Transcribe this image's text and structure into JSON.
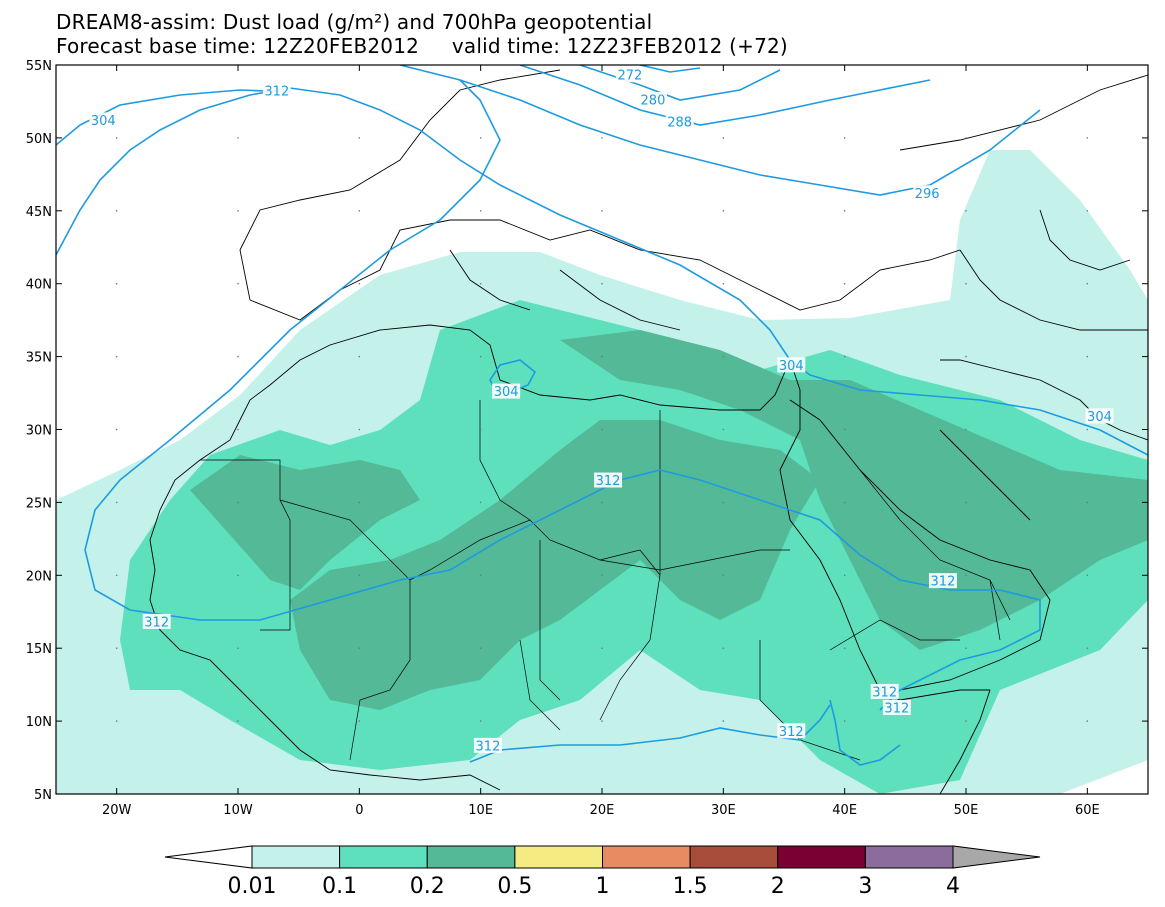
{
  "title": {
    "line1": "DREAM8-assim: Dust load (g/m²) and 700hPa geopotential",
    "line2": "Forecast base time: 12Z20FEB2012     valid time: 12Z23FEB2012 (+72)"
  },
  "map": {
    "lon_range": [
      -25,
      65
    ],
    "lat_range": [
      5,
      55
    ],
    "lat_ticks": [
      {
        "value": 55,
        "label": "55N"
      },
      {
        "value": 50,
        "label": "50N"
      },
      {
        "value": 45,
        "label": "45N"
      },
      {
        "value": 40,
        "label": "40N"
      },
      {
        "value": 35,
        "label": "35N"
      },
      {
        "value": 30,
        "label": "30N"
      },
      {
        "value": 25,
        "label": "25N"
      },
      {
        "value": 20,
        "label": "20N"
      },
      {
        "value": 15,
        "label": "15N"
      },
      {
        "value": 10,
        "label": "10N"
      },
      {
        "value": 5,
        "label": "5N"
      }
    ],
    "lon_ticks": [
      {
        "value": -20,
        "label": "20W"
      },
      {
        "value": -10,
        "label": "10W"
      },
      {
        "value": 0,
        "label": "0"
      },
      {
        "value": 10,
        "label": "10E"
      },
      {
        "value": 20,
        "label": "20E"
      },
      {
        "value": 30,
        "label": "30E"
      },
      {
        "value": 40,
        "label": "40E"
      },
      {
        "value": 50,
        "label": "50E"
      },
      {
        "value": 60,
        "label": "60E"
      }
    ],
    "contour_color": "#1e9be0",
    "contour_labels": [
      {
        "text": "272",
        "lon": 22.3,
        "lat": 54.3
      },
      {
        "text": "280",
        "lon": 24.2,
        "lat": 52.6
      },
      {
        "text": "288",
        "lon": 26.4,
        "lat": 51.1
      },
      {
        "text": "296",
        "lon": 46.8,
        "lat": 46.2
      },
      {
        "text": "304",
        "lon": -21.1,
        "lat": 51.2
      },
      {
        "text": "312",
        "lon": -6.8,
        "lat": 53.2
      },
      {
        "text": "304",
        "lon": 12.1,
        "lat": 32.6
      },
      {
        "text": "304",
        "lon": 35.6,
        "lat": 34.4
      },
      {
        "text": "304",
        "lon": 61.0,
        "lat": 30.9
      },
      {
        "text": "312",
        "lon": 20.5,
        "lat": 26.5
      },
      {
        "text": "312",
        "lon": 48.1,
        "lat": 19.6
      },
      {
        "text": "312",
        "lon": -16.7,
        "lat": 16.8
      },
      {
        "text": "312",
        "lon": 43.3,
        "lat": 12.0
      },
      {
        "text": "312",
        "lon": 44.3,
        "lat": 10.9
      },
      {
        "text": "312",
        "lon": 10.6,
        "lat": 8.3
      },
      {
        "text": "312",
        "lon": 35.6,
        "lat": 9.3
      }
    ]
  },
  "colorbar": {
    "colors": [
      "#ffffff",
      "#c4f2ea",
      "#5ee0bd",
      "#53b996",
      "#f4eb82",
      "#e78b63",
      "#a84d3c",
      "#7b0032",
      "#8c6c9c",
      "#a8a8a8"
    ],
    "labels": [
      "0.01",
      "0.1",
      "0.2",
      "0.5",
      "1",
      "1.5",
      "2",
      "3",
      "4"
    ]
  }
}
